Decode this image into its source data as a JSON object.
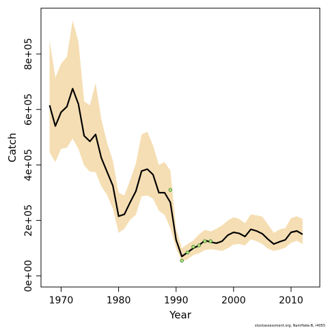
{
  "chart_data": {
    "type": "line",
    "title": "",
    "xlabel": "Year",
    "ylabel": "Catch",
    "xlim": [
      1966.5,
      2015.0
    ],
    "ylim": [
      -40000,
      965000
    ],
    "xticks": [
      1970,
      1980,
      1990,
      2000,
      2010
    ],
    "xtick_labels": [
      "1970",
      "1980",
      "1990",
      "2000",
      "2010"
    ],
    "yticks": [
      0,
      200000,
      400000,
      600000,
      800000
    ],
    "ytick_labels": [
      "0e+00",
      "2e+05",
      "4e+05",
      "6e+05",
      "8e+05"
    ],
    "grid": false,
    "legend": "none",
    "colors": {
      "line": "#000000",
      "band": "#f5deb3",
      "points_fill": "#b8e07a",
      "points_stroke": "#2e7d2e"
    },
    "series": [
      {
        "kind": "line",
        "x": [
          1968,
          1969,
          1970,
          1971,
          1972,
          1973,
          1974,
          1975,
          1976,
          1977,
          1978,
          1979,
          1980,
          1981,
          1982,
          1983,
          1984,
          1985,
          1986,
          1987,
          1988,
          1989,
          1990,
          1991,
          1992,
          1993,
          1994,
          1995,
          1996,
          1997,
          1998,
          1999,
          2000,
          2001,
          2002,
          2003,
          2004,
          2005,
          2006,
          2007,
          2008,
          2009,
          2010,
          2011,
          2012
        ],
        "y": [
          615000,
          540000,
          590000,
          610000,
          675000,
          620000,
          505000,
          485000,
          510000,
          425000,
          375000,
          325000,
          215000,
          222000,
          265000,
          305000,
          378000,
          385000,
          365000,
          300000,
          300000,
          265000,
          130000,
          70000,
          85000,
          100000,
          110000,
          128000,
          122000,
          118000,
          125000,
          147000,
          157000,
          153000,
          142000,
          168000,
          162000,
          152000,
          132000,
          115000,
          123000,
          130000,
          157000,
          162000,
          150000
        ]
      },
      {
        "kind": "band",
        "x": [
          1968,
          1969,
          1970,
          1971,
          1972,
          1973,
          1974,
          1975,
          1976,
          1977,
          1978,
          1979,
          1980,
          1981,
          1982,
          1983,
          1984,
          1985,
          1986,
          1987,
          1988,
          1989,
          1990,
          1991,
          1992,
          1993,
          1994,
          1995,
          1996,
          1997,
          1998,
          1999,
          2000,
          2001,
          2002,
          2003,
          2004,
          2005,
          2006,
          2007,
          2008,
          2009,
          2010,
          2011,
          2012
        ],
        "upper": [
          850000,
          715000,
          765000,
          790000,
          920000,
          845000,
          630000,
          615000,
          695000,
          565000,
          480000,
          415000,
          300000,
          290000,
          345000,
          405000,
          510000,
          520000,
          470000,
          400000,
          410000,
          380000,
          170000,
          100000,
          115000,
          128000,
          150000,
          166000,
          160000,
          170000,
          182000,
          200000,
          212000,
          205000,
          190000,
          222000,
          218000,
          214000,
          185000,
          155000,
          168000,
          172000,
          208000,
          215000,
          205000
        ],
        "lower": [
          445000,
          410000,
          458000,
          462000,
          495000,
          458000,
          398000,
          376000,
          374000,
          323000,
          292000,
          242000,
          155000,
          170000,
          202000,
          220000,
          287000,
          290000,
          278000,
          235000,
          220000,
          172000,
          100000,
          52000,
          60000,
          75000,
          82000,
          93000,
          96000,
          94000,
          90000,
          100000,
          113000,
          115000,
          110000,
          132000,
          125000,
          115000,
          98000,
          90000,
          95000,
          102000,
          119000,
          127000,
          115000
        ]
      },
      {
        "kind": "points",
        "x": [
          1989,
          1991,
          1992,
          1993,
          1994,
          1995,
          1996
        ],
        "y": [
          310000,
          55000,
          85000,
          105000,
          110000,
          125000,
          125000
        ]
      }
    ],
    "annotations": [
      "stockassessment.org, NamHake-B, r4055"
    ]
  }
}
